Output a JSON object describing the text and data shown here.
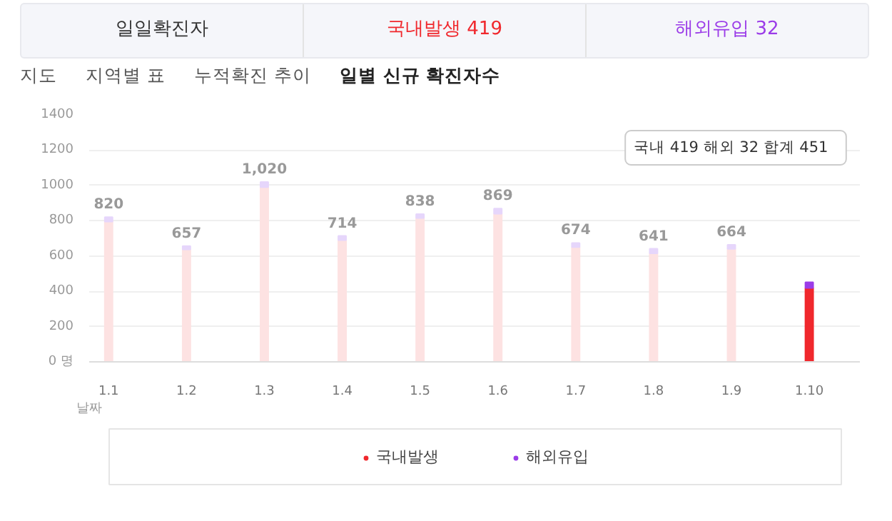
{
  "chart_data": {
    "type": "bar",
    "stacked": true,
    "title": "일일확진자",
    "annotations": [
      "국내발생 419",
      "해외유입 32",
      "지도",
      "지역별 표",
      "누적확진 추이",
      "일별 신규 확진자수",
      "국내 419  해외 32  합계 451"
    ],
    "xlabel": "날짜",
    "categories": [
      "1.1",
      "1.2",
      "1.3",
      "1.4",
      "1.5",
      "1.6",
      "1.7",
      "1.8",
      "1.9",
      "1.10"
    ],
    "series": [
      {
        "name": "국내발생",
        "color": "#f0282d",
        "colors": [
          "#fde2e2",
          "#fde2e2",
          "#fde2e2",
          "#fde2e2",
          "#fde2e2",
          "#fde2e2",
          "#fde2e2",
          "#fde2e2",
          "#fde2e2",
          "#f0282d"
        ],
        "values": [
          795,
          637,
          990,
          690,
          815,
          840,
          650,
          615,
          640,
          419
        ]
      },
      {
        "name": "해외유입",
        "color": "#9b3ce8",
        "colors": [
          "#e6d6fb",
          "#e6d6fb",
          "#e6d6fb",
          "#e6d6fb",
          "#e6d6fb",
          "#e6d6fb",
          "#e6d6fb",
          "#e6d6fb",
          "#e6d6fb",
          "#9b3ce8"
        ],
        "values": [
          25,
          20,
          30,
          24,
          23,
          29,
          24,
          26,
          24,
          32
        ]
      }
    ],
    "totals": [
      "820",
      "657",
      "1,020",
      "714",
      "838",
      "869",
      "674",
      "641",
      "664",
      null
    ],
    "ylim": [
      0,
      1400
    ],
    "yticks": [
      {
        "value": 0,
        "label": "0 명"
      },
      200,
      400,
      600,
      800,
      1000,
      1200,
      1400
    ],
    "grid": "y",
    "legend": "bottom"
  }
}
